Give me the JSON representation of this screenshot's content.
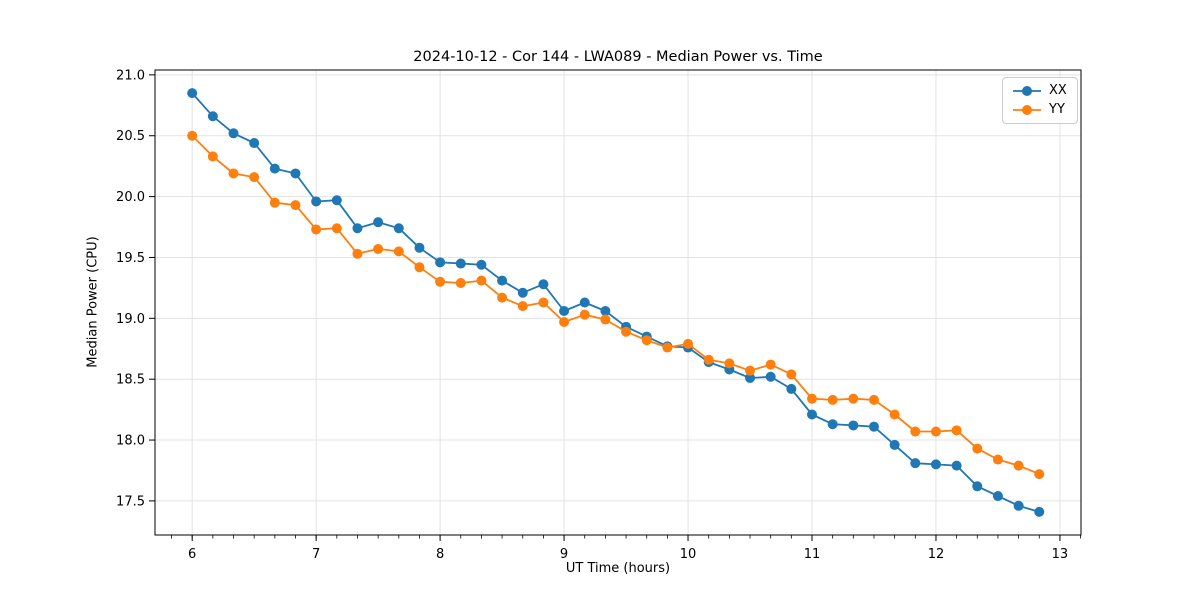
{
  "chart_data": {
    "type": "line",
    "title": "2024-10-12 - Cor 144 - LWA089 - Median Power vs. Time",
    "xlabel": "UT Time (hours)",
    "ylabel": "Median Power (CPU)",
    "x": [
      6.0,
      6.1667,
      6.3333,
      6.5,
      6.6667,
      6.8333,
      7.0,
      7.1667,
      7.3333,
      7.5,
      7.6667,
      7.8333,
      8.0,
      8.1667,
      8.3333,
      8.5,
      8.6667,
      8.8333,
      9.0,
      9.1667,
      9.3333,
      9.5,
      9.6667,
      9.8333,
      10.0,
      10.1667,
      10.3333,
      10.5,
      10.6667,
      10.8333,
      11.0,
      11.1667,
      11.3333,
      11.5,
      11.6667,
      11.8333,
      12.0,
      12.1667,
      12.3333,
      12.5,
      12.6667,
      12.8333
    ],
    "series": [
      {
        "name": "XX",
        "color": "#1f77b4",
        "values": [
          20.85,
          20.66,
          20.52,
          20.44,
          20.23,
          20.19,
          19.96,
          19.97,
          19.74,
          19.79,
          19.74,
          19.58,
          19.46,
          19.45,
          19.44,
          19.31,
          19.21,
          19.28,
          19.06,
          19.13,
          19.06,
          18.93,
          18.85,
          18.77,
          18.76,
          18.64,
          18.58,
          18.51,
          18.52,
          18.42,
          18.21,
          18.13,
          18.12,
          18.11,
          17.96,
          17.81,
          17.8,
          17.79,
          17.62,
          17.54,
          17.46,
          17.41
        ]
      },
      {
        "name": "YY",
        "color": "#ff7f0e",
        "values": [
          20.5,
          20.33,
          20.19,
          20.16,
          19.95,
          19.93,
          19.73,
          19.74,
          19.53,
          19.57,
          19.55,
          19.42,
          19.3,
          19.29,
          19.31,
          19.17,
          19.1,
          19.13,
          18.97,
          19.03,
          18.99,
          18.89,
          18.82,
          18.76,
          18.79,
          18.66,
          18.63,
          18.57,
          18.62,
          18.54,
          18.34,
          18.33,
          18.34,
          18.33,
          18.21,
          18.07,
          18.07,
          18.08,
          17.93,
          17.84,
          17.79,
          17.72
        ]
      }
    ],
    "xlim": [
      5.7,
      13.17
    ],
    "ylim": [
      17.22,
      21.04
    ],
    "xticks": [
      6,
      7,
      8,
      9,
      10,
      11,
      12,
      13
    ],
    "xtick_labels": [
      "6",
      "7",
      "8",
      "9",
      "10",
      "11",
      "12",
      "13"
    ],
    "yticks": [
      17.5,
      18.0,
      18.5,
      19.0,
      19.5,
      20.0,
      20.5,
      21.0
    ],
    "ytick_labels": [
      "17.5",
      "18.0",
      "18.5",
      "19.0",
      "19.5",
      "20.0",
      "20.5",
      "21.0"
    ],
    "x_minor_tick_step": 0.1666667,
    "grid": true,
    "grid_color": "#e3e3e3",
    "axes_background": "#ffffff",
    "legend_position": "upper right",
    "legend_entries": [
      "XX",
      "YY"
    ]
  }
}
